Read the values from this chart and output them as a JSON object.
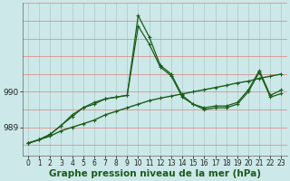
{
  "xlabel": "Graphe pression niveau de la mer (hPa)",
  "background_color": "#cce8e8",
  "plot_bg_color": "#cce8e8",
  "grid_color_h": "#e08080",
  "grid_color_v": "#b0c8c8",
  "line_color": "#1a5c1a",
  "x": [
    0,
    1,
    2,
    3,
    4,
    5,
    6,
    7,
    8,
    9,
    10,
    11,
    12,
    13,
    14,
    15,
    16,
    17,
    18,
    19,
    20,
    21,
    22,
    23
  ],
  "series1": [
    988.55,
    988.65,
    988.75,
    988.9,
    989.0,
    989.1,
    989.2,
    989.35,
    989.45,
    989.55,
    989.65,
    989.75,
    989.82,
    989.88,
    989.94,
    990.0,
    990.06,
    990.12,
    990.18,
    990.25,
    990.3,
    990.38,
    990.44,
    990.5
  ],
  "series2": [
    988.55,
    988.65,
    988.8,
    989.05,
    989.35,
    989.55,
    989.7,
    989.8,
    989.85,
    989.9,
    991.85,
    991.35,
    990.7,
    990.45,
    989.85,
    989.65,
    989.55,
    989.6,
    989.6,
    989.7,
    990.05,
    990.6,
    989.9,
    990.05
  ],
  "series3": [
    988.55,
    988.65,
    988.8,
    989.05,
    989.3,
    989.55,
    989.65,
    989.8,
    989.85,
    989.9,
    992.15,
    991.55,
    990.75,
    990.5,
    989.9,
    989.65,
    989.5,
    989.55,
    989.55,
    989.65,
    990.0,
    990.55,
    989.85,
    989.95
  ],
  "ylim": [
    988.2,
    992.5
  ],
  "yticks": [
    989,
    990
  ],
  "xticks": [
    0,
    1,
    2,
    3,
    4,
    5,
    6,
    7,
    8,
    9,
    10,
    11,
    12,
    13,
    14,
    15,
    16,
    17,
    18,
    19,
    20,
    21,
    22,
    23
  ],
  "tick_fontsize": 5.5,
  "xlabel_fontsize": 7.5,
  "xlabel_color": "#1a5c1a"
}
